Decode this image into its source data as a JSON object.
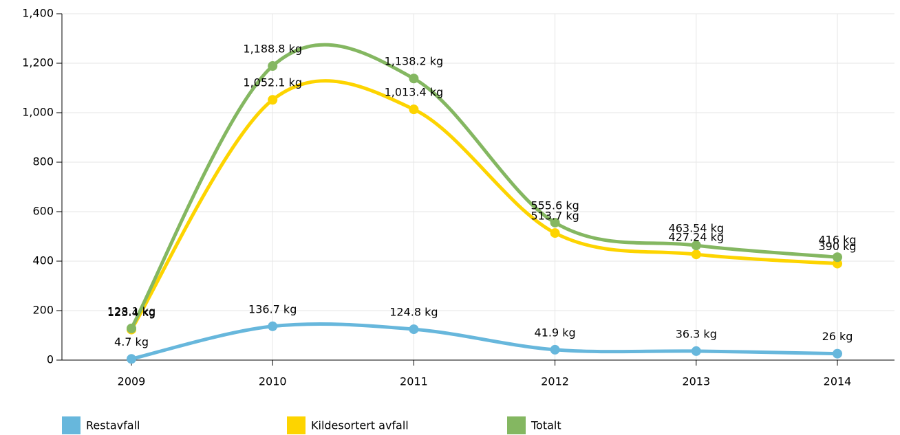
{
  "chart_data": {
    "type": "line",
    "categories": [
      "2009",
      "2010",
      "2011",
      "2012",
      "2013",
      "2014"
    ],
    "series": [
      {
        "name": "Restavfall",
        "color": "#67b7dc",
        "values": [
          4.7,
          136.7,
          124.8,
          41.9,
          36.3,
          26
        ],
        "value_labels": [
          "4.7 kg",
          "136.7 kg",
          "124.8 kg",
          "41.9 kg",
          "36.3 kg",
          "26 kg"
        ]
      },
      {
        "name": "Kildesortert avfall",
        "color": "#fdd400",
        "values": [
          123.4,
          1052.1,
          1013.4,
          513.7,
          427.24,
          390
        ],
        "value_labels": [
          "123.4 kg",
          "1,052.1 kg",
          "1,013.4 kg",
          "513.7 kg",
          "427.24 kg",
          "390 kg"
        ]
      },
      {
        "name": "Totalt",
        "color": "#84b761",
        "values": [
          128.1,
          1188.8,
          1138.2,
          555.6,
          463.54,
          416
        ],
        "value_labels": [
          "128.1 kg",
          "1,188.8 kg",
          "1,138.2 kg",
          "555.6 kg",
          "463.54 kg",
          "416 kg"
        ]
      }
    ],
    "ylim": [
      0,
      1400
    ],
    "yticks": [
      0,
      200,
      400,
      600,
      800,
      {
        "value": 1000,
        "label": "1,000"
      },
      {
        "value": 1200,
        "label": "1,200"
      },
      {
        "value": 1400,
        "label": "1,400"
      }
    ],
    "grid": true,
    "smooth": true,
    "legend": "bottom"
  }
}
